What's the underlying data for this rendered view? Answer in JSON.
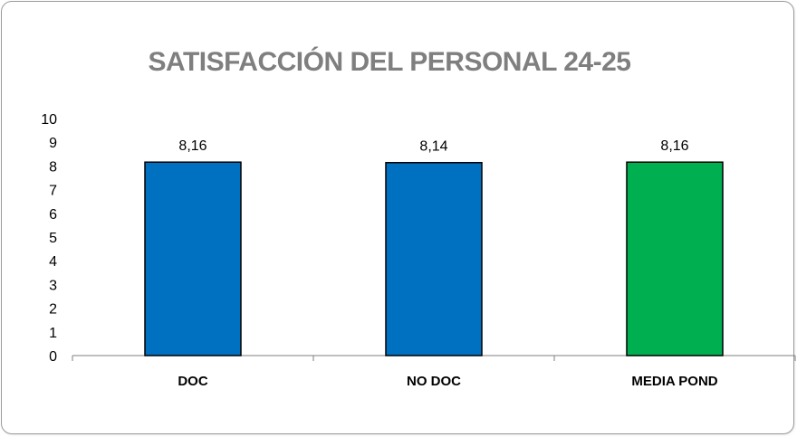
{
  "chart_data": {
    "type": "bar",
    "title": "SATISFACCIÓN DEL PERSONAL 24-25",
    "xlabel": "",
    "ylabel": "",
    "categories": [
      "DOC",
      "NO DOC",
      "MEDIA POND"
    ],
    "values": [
      8.16,
      8.14,
      8.16
    ],
    "data_labels": [
      "8,16",
      "8,14",
      "8,16"
    ],
    "bar_colors": [
      "#0070C0",
      "#0070C0",
      "#00B050"
    ],
    "bar_border_color": "#000000",
    "ylim": [
      0,
      10
    ],
    "yticks": [
      0,
      1,
      2,
      3,
      4,
      5,
      6,
      7,
      8,
      9,
      10
    ],
    "grid": false,
    "legend": "none"
  }
}
